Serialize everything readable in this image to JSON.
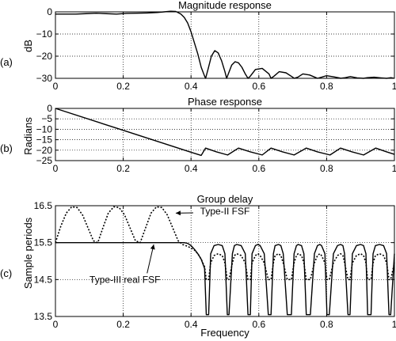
{
  "chart_data": [
    {
      "panel_tag": "(a)",
      "type": "line",
      "title": "Magnitude response",
      "xlabel": "",
      "ylabel": "dB",
      "xlim": [
        0,
        1
      ],
      "ylim": [
        -30,
        0
      ],
      "xticks": [
        0,
        0.2,
        0.4,
        0.6,
        0.8,
        1
      ],
      "xtick_labels": [
        "0",
        "0.2",
        "0.4",
        "0.6",
        "0.8",
        "1"
      ],
      "yticks": [
        0,
        -10,
        -20,
        -30
      ],
      "ytick_labels": [
        "0",
        "−10",
        "−20",
        "−30"
      ],
      "grid": true,
      "series": [
        {
          "style": "solid",
          "x": [
            0,
            0.03,
            0.06,
            0.09,
            0.12,
            0.15,
            0.18,
            0.21,
            0.24,
            0.27,
            0.3,
            0.32,
            0.34,
            0.355,
            0.37,
            0.38,
            0.39,
            0.4,
            0.41,
            0.42,
            0.43,
            0.44,
            0.443,
            0.45,
            0.46,
            0.47,
            0.48,
            0.49,
            0.5,
            0.505,
            0.51,
            0.52,
            0.53,
            0.54,
            0.55,
            0.56,
            0.568,
            0.575,
            0.59,
            0.61,
            0.63,
            0.636,
            0.645,
            0.66,
            0.68,
            0.7,
            0.704,
            0.715,
            0.73,
            0.75,
            0.77,
            0.773,
            0.785,
            0.8,
            0.82,
            0.84,
            0.841,
            0.855,
            0.87,
            0.89,
            0.909,
            0.92,
            0.94,
            0.96,
            0.977,
            0.99,
            1
          ],
          "y": [
            -1,
            -1,
            -1,
            -0.8,
            -0.6,
            -0.8,
            -1,
            -0.7,
            -0.6,
            -0.5,
            -0.3,
            0,
            0.3,
            0.2,
            -1,
            -2.5,
            -5,
            -9,
            -14,
            -19,
            -25,
            -29,
            -30,
            -26,
            -20,
            -17.5,
            -18.5,
            -22,
            -27,
            -30,
            -28,
            -24,
            -22.5,
            -23,
            -25,
            -28,
            -30,
            -29,
            -26,
            -25.5,
            -28,
            -30,
            -29,
            -27,
            -27.5,
            -29.5,
            -30,
            -29.5,
            -28,
            -28.5,
            -29.8,
            -30,
            -29.5,
            -28.8,
            -29.3,
            -29.9,
            -30,
            -29.7,
            -29.2,
            -29.8,
            -30,
            -29.7,
            -29.5,
            -29.8,
            -30,
            -29.7,
            -30
          ]
        }
      ]
    },
    {
      "panel_tag": "(b)",
      "type": "line",
      "title": "Phase response",
      "xlabel": "",
      "ylabel": "Radians",
      "xlim": [
        0,
        1
      ],
      "ylim": [
        -25,
        0
      ],
      "xticks": [
        0,
        0.2,
        0.4,
        0.6,
        0.8,
        1
      ],
      "xtick_labels": [
        "0",
        "0.2",
        "0.4",
        "0.6",
        "0.8",
        "1"
      ],
      "yticks": [
        0,
        -5,
        -10,
        -15,
        -20,
        -25
      ],
      "ytick_labels": [
        "0",
        "−5",
        "−10",
        "−15",
        "−20",
        "−25"
      ],
      "grid": true,
      "series": [
        {
          "style": "solid",
          "x": [
            0,
            0.2,
            0.4,
            0.43,
            0.443,
            0.475,
            0.508,
            0.54,
            0.575,
            0.61,
            0.636,
            0.67,
            0.704,
            0.74,
            0.773,
            0.81,
            0.841,
            0.875,
            0.909,
            0.945,
            0.977,
            1
          ],
          "y": [
            0,
            -10.5,
            -21,
            -22.5,
            -19,
            -20.8,
            -22.3,
            -19,
            -20.8,
            -22.3,
            -19,
            -20.8,
            -22.3,
            -19,
            -20.8,
            -22.3,
            -19,
            -20.8,
            -22.3,
            -19,
            -20.8,
            -22
          ]
        }
      ]
    },
    {
      "panel_tag": "(c)",
      "type": "line",
      "title": "Group delay",
      "xlabel": "Frequency",
      "ylabel": "Sample periods",
      "xlim": [
        0,
        1
      ],
      "ylim": [
        13.5,
        16.5
      ],
      "xticks": [
        0,
        0.2,
        0.4,
        0.6,
        0.8,
        1
      ],
      "xtick_labels": [
        "0",
        "0.2",
        "0.4",
        "0.6",
        "0.8",
        "1"
      ],
      "yticks": [
        13.5,
        14.5,
        15.5,
        16.5
      ],
      "ytick_labels": [
        "13.5",
        "14.5",
        "15.5",
        "16.5"
      ],
      "grid": true,
      "annotations": [
        {
          "text": "Type-II FSF",
          "x": 0.5,
          "y": 16.35,
          "point_x": 0.355,
          "point_y": 16.3
        },
        {
          "text": "Type-III real FSF",
          "x": 0.205,
          "y": 14.5,
          "point_x": 0.29,
          "point_y": 15.45
        }
      ],
      "series": [
        {
          "name": "Type-III real FSF",
          "style": "solid",
          "x": [
            0,
            0.38,
            0.39,
            0.4,
            0.41,
            0.42,
            0.43,
            0.44,
            0.445,
            0.452,
            0.458,
            0.468,
            0.48,
            0.492,
            0.5,
            0.507,
            0.512,
            0.522,
            0.528,
            0.535,
            0.548,
            0.56,
            0.568,
            0.575,
            0.58,
            0.59,
            0.597,
            0.604,
            0.616,
            0.628,
            0.636,
            0.643,
            0.648,
            0.658,
            0.665,
            0.672,
            0.684,
            0.696,
            0.704,
            0.711,
            0.716,
            0.726,
            0.733,
            0.74,
            0.752,
            0.764,
            0.773,
            0.78,
            0.785,
            0.795,
            0.801,
            0.808,
            0.82,
            0.832,
            0.841,
            0.848,
            0.853,
            0.863,
            0.869,
            0.876,
            0.888,
            0.9,
            0.909,
            0.916,
            0.921,
            0.931,
            0.937,
            0.944,
            0.956,
            0.968,
            0.977,
            0.984,
            0.989,
            1
          ],
          "y": [
            15.5,
            15.5,
            15.48,
            15.42,
            15.32,
            15.2,
            15.05,
            14.8,
            13.55,
            13.55,
            15.2,
            15.42,
            15.45,
            15.42,
            15.2,
            13.55,
            13.55,
            15.2,
            15.42,
            15.45,
            15.42,
            15.2,
            13.55,
            13.55,
            15.2,
            15.42,
            15.45,
            15.42,
            15.2,
            13.55,
            13.55,
            15.2,
            15.42,
            15.45,
            15.42,
            15.2,
            13.55,
            13.55,
            15.2,
            15.42,
            15.45,
            15.42,
            15.2,
            13.55,
            13.55,
            15.2,
            15.42,
            15.45,
            15.42,
            15.2,
            13.55,
            13.55,
            15.2,
            15.42,
            15.45,
            15.42,
            15.2,
            13.55,
            13.55,
            15.2,
            15.42,
            15.45,
            15.42,
            15.2,
            13.55,
            13.55,
            15.2,
            15.42,
            15.45,
            15.42,
            15.2,
            13.55,
            13.55,
            15.2
          ]
        },
        {
          "name": "Type-II FSF",
          "style": "dotted",
          "x": [
            0,
            0.016,
            0.032,
            0.048,
            0.064,
            0.08,
            0.096,
            0.112,
            0.125,
            0.14,
            0.156,
            0.172,
            0.188,
            0.204,
            0.22,
            0.236,
            0.25,
            0.266,
            0.282,
            0.298,
            0.314,
            0.33,
            0.346,
            0.362,
            0.375,
            0.39,
            0.4,
            0.41,
            0.42,
            0.43,
            0.44,
            0.445,
            0.452,
            0.458,
            0.468,
            0.48,
            0.492,
            0.5,
            0.507,
            0.512,
            0.522,
            0.528,
            0.535,
            0.548,
            0.56,
            0.568,
            0.575,
            0.58,
            0.59,
            0.597,
            0.604,
            0.616,
            0.628,
            0.636,
            0.643,
            0.648,
            0.658,
            0.665,
            0.672,
            0.684,
            0.696,
            0.704,
            0.711,
            0.716,
            0.726,
            0.733,
            0.74,
            0.752,
            0.764,
            0.773,
            0.78,
            0.785,
            0.795,
            0.801,
            0.808,
            0.82,
            0.832,
            0.841,
            0.848,
            0.853,
            0.863,
            0.869,
            0.876,
            0.888,
            0.9,
            0.909,
            0.916,
            0.921,
            0.931,
            0.937,
            0.944,
            0.956,
            0.968,
            0.977,
            0.984,
            0.989,
            1
          ],
          "y": [
            15.5,
            15.95,
            16.3,
            16.47,
            16.45,
            16.25,
            15.9,
            15.55,
            15.5,
            15.9,
            16.3,
            16.47,
            16.45,
            16.25,
            15.9,
            15.55,
            15.5,
            15.9,
            16.3,
            16.47,
            16.45,
            16.25,
            15.9,
            15.55,
            15.45,
            15.4,
            15.35,
            15.3,
            15.2,
            15.05,
            14.85,
            14.5,
            14.5,
            14.95,
            15.15,
            15.2,
            15.15,
            14.95,
            14.5,
            14.5,
            14.95,
            15.15,
            15.2,
            15.15,
            14.95,
            14.5,
            14.5,
            14.95,
            15.15,
            15.2,
            15.15,
            14.95,
            14.5,
            14.5,
            14.95,
            15.15,
            15.2,
            15.15,
            14.95,
            14.5,
            14.5,
            14.95,
            15.15,
            15.2,
            15.15,
            14.95,
            14.5,
            14.5,
            14.95,
            15.15,
            15.2,
            15.15,
            14.95,
            14.5,
            14.5,
            14.95,
            15.15,
            15.2,
            15.15,
            14.95,
            14.5,
            14.5,
            14.95,
            15.15,
            15.2,
            15.15,
            14.95,
            14.5,
            14.5,
            14.95,
            15.15,
            15.2,
            15.15,
            14.95,
            14.5,
            14.5,
            14.95
          ]
        }
      ]
    }
  ]
}
